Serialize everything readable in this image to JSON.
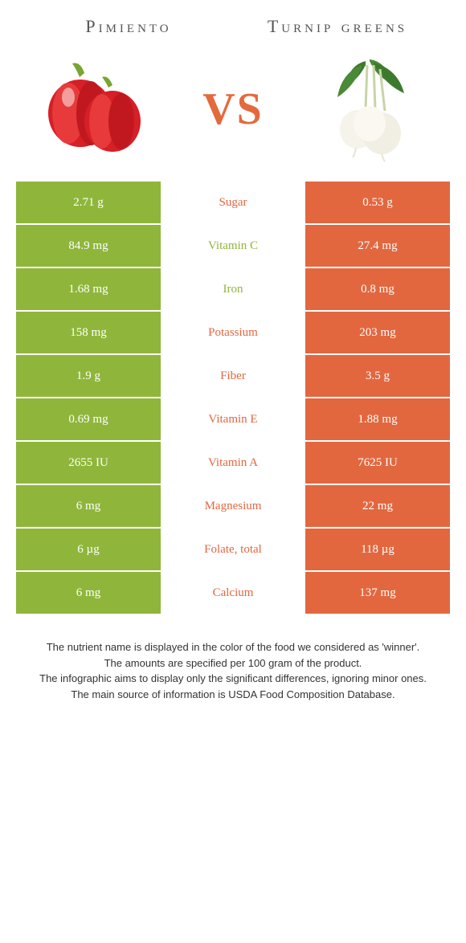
{
  "colors": {
    "left": "#8fb63b",
    "right": "#e2673f",
    "vs": "#e36a3d",
    "title": "#555555"
  },
  "foods": {
    "left": {
      "title": "Pimiento"
    },
    "right": {
      "title": "Turnip greens"
    }
  },
  "vs_label": "VS",
  "nutrients": [
    {
      "label": "Sugar",
      "left": "2.71 g",
      "right": "0.53 g",
      "winner": "right"
    },
    {
      "label": "Vitamin C",
      "left": "84.9 mg",
      "right": "27.4 mg",
      "winner": "left"
    },
    {
      "label": "Iron",
      "left": "1.68 mg",
      "right": "0.8 mg",
      "winner": "left"
    },
    {
      "label": "Potassium",
      "left": "158 mg",
      "right": "203 mg",
      "winner": "right"
    },
    {
      "label": "Fiber",
      "left": "1.9 g",
      "right": "3.5 g",
      "winner": "right"
    },
    {
      "label": "Vitamin E",
      "left": "0.69 mg",
      "right": "1.88 mg",
      "winner": "right"
    },
    {
      "label": "Vitamin A",
      "left": "2655 IU",
      "right": "7625 IU",
      "winner": "right"
    },
    {
      "label": "Magnesium",
      "left": "6 mg",
      "right": "22 mg",
      "winner": "right"
    },
    {
      "label": "Folate, total",
      "left": "6 µg",
      "right": "118 µg",
      "winner": "right"
    },
    {
      "label": "Calcium",
      "left": "6 mg",
      "right": "137 mg",
      "winner": "right"
    }
  ],
  "footer": {
    "line1": "The nutrient name is displayed in the color of the food we considered as 'winner'.",
    "line2": "The amounts are specified per 100 gram of the product.",
    "line3": "The infographic aims to display only the significant differences, ignoring minor ones.",
    "line4": "The main source of information is USDA Food Composition Database."
  }
}
